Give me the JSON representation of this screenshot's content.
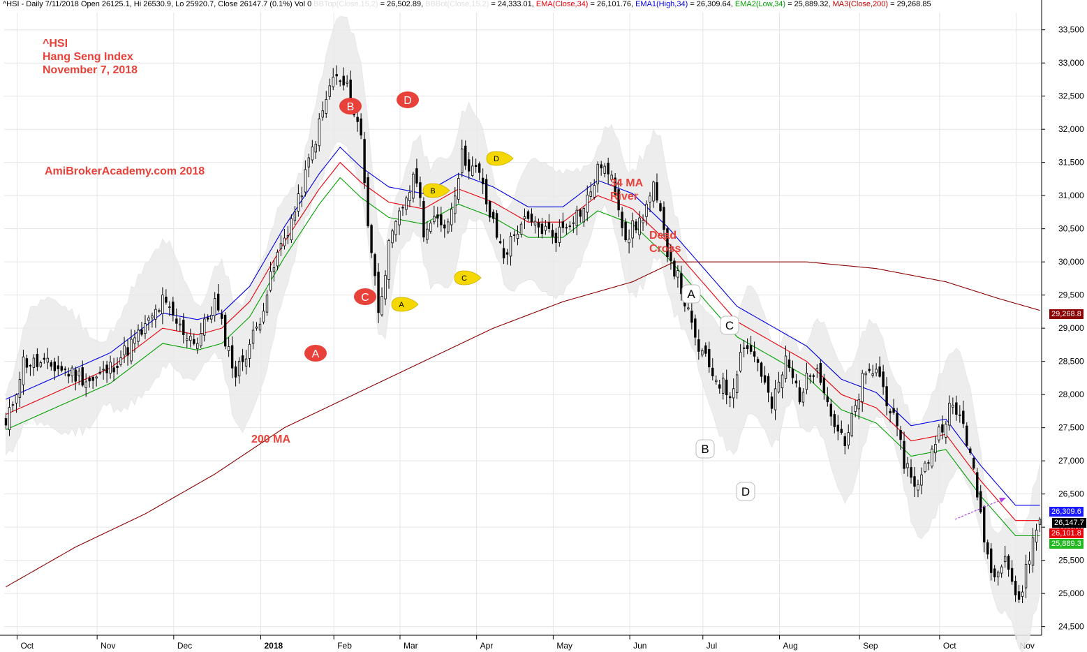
{
  "header": {
    "symbol": "^HSI - Daily 7/11/2018 Open 26125.1, Hi 26530.9, Lo 25920.7, Close 26147.7 (0.1%) Vol 0",
    "bbtop_label": "BBTop(Close,15,2)",
    "bbtop_value": " = 26,502.89, ",
    "bbbot_label": "BBBot(Close,15,2)",
    "bbbot_value": " = 24,333.01, ",
    "ema_label": "EMA(Close,34)",
    "ema_value": " = 26,101.76, ",
    "ema1_label": "EMA1(High,34)",
    "ema1_value": " = 26,309.64, ",
    "ema2_label": "EMA2(Low,34)",
    "ema2_value": " = 25,889.32, ",
    "ma3_label": "MA3(Close,200)",
    "ma3_value": " = 29,268.85"
  },
  "annotations": {
    "title_line1": "^HSI",
    "title_line2": "Hang Seng Index",
    "title_line3": "November 7, 2018",
    "site": "AmiBrokerAcademy.com  2018",
    "ma200": "200 MA",
    "river_line1": "34 MA",
    "river_line2": "River",
    "dead_line1": "Dead",
    "dead_line2": "Cross",
    "red_markers": [
      "A",
      "B",
      "C",
      "D"
    ],
    "yellow_markers": [
      "A",
      "B",
      "C",
      "D"
    ],
    "white_markers": [
      "A",
      "B",
      "C",
      "D"
    ]
  },
  "price_badges": {
    "ma200": "29,268.8",
    "ema_high": "26,309.6",
    "close": "26,147.7",
    "ema_close": "26,101.8",
    "ema_low": "25,889.3"
  },
  "colors": {
    "ema_close": "#e8000b",
    "ema_high": "#0000e0",
    "ema_low": "#00a000",
    "ma200": "#8b0000",
    "bands": "#ebebeb",
    "marker_red": "#e8413a",
    "marker_yellow": "#f5d800",
    "arrow": "#b044e8"
  },
  "chart_data": {
    "type": "candlestick",
    "title": "^HSI Hang Seng Index",
    "xlabel": "",
    "ylabel": "",
    "y_ticks": [
      24500,
      25000,
      25500,
      26000,
      26500,
      27000,
      27500,
      28000,
      28500,
      29000,
      29500,
      30000,
      30500,
      31000,
      31500,
      32000,
      32500,
      33000,
      33500
    ],
    "y_tick_labels": [
      "24,500",
      "25,000",
      "25,500",
      "26,000",
      "26,500",
      "27,000",
      "27,500",
      "28,000",
      "28,500",
      "29,000",
      "29,500",
      "30,000",
      "30,500",
      "31,000",
      "31,500",
      "32,000",
      "32,500",
      "33,000",
      "33,500"
    ],
    "ylim": [
      24370,
      33760
    ],
    "x_ticks": [
      "Oct",
      "Nov",
      "Dec",
      "2018",
      "Feb",
      "Mar",
      "Apr",
      "May",
      "Jun",
      "Jul",
      "Aug",
      "Sep",
      "Oct",
      "Nov"
    ],
    "grid": true,
    "close_anchors": [
      [
        0,
        27500
      ],
      [
        5,
        28500
      ],
      [
        15,
        28400
      ],
      [
        25,
        28200
      ],
      [
        30,
        28400
      ],
      [
        40,
        29000
      ],
      [
        45,
        29400
      ],
      [
        50,
        29000
      ],
      [
        55,
        28800
      ],
      [
        60,
        29400
      ],
      [
        66,
        28300
      ],
      [
        72,
        29000
      ],
      [
        78,
        30100
      ],
      [
        84,
        30900
      ],
      [
        88,
        31700
      ],
      [
        94,
        32800
      ],
      [
        98,
        32600
      ],
      [
        102,
        31900
      ],
      [
        104,
        30600
      ],
      [
        107,
        29300
      ],
      [
        110,
        30200
      ],
      [
        115,
        31000
      ],
      [
        118,
        31300
      ],
      [
        120,
        30500
      ],
      [
        124,
        30600
      ],
      [
        127,
        30600
      ],
      [
        131,
        31600
      ],
      [
        136,
        31300
      ],
      [
        139,
        30700
      ],
      [
        143,
        30100
      ],
      [
        148,
        30600
      ],
      [
        154,
        30500
      ],
      [
        158,
        30400
      ],
      [
        163,
        30700
      ],
      [
        166,
        30800
      ],
      [
        171,
        31500
      ],
      [
        175,
        31100
      ],
      [
        178,
        30400
      ],
      [
        182,
        30600
      ],
      [
        186,
        31100
      ],
      [
        190,
        30200
      ],
      [
        194,
        29600
      ],
      [
        198,
        28800
      ],
      [
        202,
        28400
      ],
      [
        208,
        28000
      ],
      [
        212,
        28800
      ],
      [
        216,
        28500
      ],
      [
        220,
        27800
      ],
      [
        224,
        28500
      ],
      [
        228,
        28000
      ],
      [
        233,
        28500
      ],
      [
        237,
        27700
      ],
      [
        241,
        27200
      ],
      [
        246,
        28200
      ],
      [
        250,
        28400
      ],
      [
        254,
        27800
      ],
      [
        258,
        27000
      ],
      [
        262,
        26600
      ],
      [
        266,
        27200
      ],
      [
        271,
        27800
      ],
      [
        275,
        27600
      ],
      [
        279,
        26500
      ],
      [
        283,
        25300
      ],
      [
        287,
        25600
      ],
      [
        291,
        24800
      ],
      [
        293,
        25400
      ],
      [
        297,
        26150
      ]
    ],
    "ema_close_anchors": [
      [
        0,
        27700
      ],
      [
        30,
        28400
      ],
      [
        45,
        29000
      ],
      [
        55,
        28900
      ],
      [
        62,
        29000
      ],
      [
        70,
        29400
      ],
      [
        80,
        30300
      ],
      [
        90,
        31100
      ],
      [
        96,
        31500
      ],
      [
        102,
        31200
      ],
      [
        110,
        30900
      ],
      [
        120,
        30800
      ],
      [
        130,
        31100
      ],
      [
        140,
        30900
      ],
      [
        150,
        30600
      ],
      [
        160,
        30600
      ],
      [
        170,
        31000
      ],
      [
        180,
        30800
      ],
      [
        190,
        30300
      ],
      [
        200,
        29700
      ],
      [
        210,
        29100
      ],
      [
        220,
        28800
      ],
      [
        230,
        28500
      ],
      [
        240,
        28000
      ],
      [
        250,
        27800
      ],
      [
        260,
        27300
      ],
      [
        270,
        27400
      ],
      [
        280,
        26700
      ],
      [
        290,
        26100
      ],
      [
        297,
        26100
      ]
    ],
    "ma200_anchors": [
      [
        0,
        25100
      ],
      [
        20,
        25700
      ],
      [
        40,
        26200
      ],
      [
        60,
        26800
      ],
      [
        80,
        27500
      ],
      [
        100,
        28000
      ],
      [
        120,
        28500
      ],
      [
        140,
        29000
      ],
      [
        160,
        29400
      ],
      [
        180,
        29700
      ],
      [
        192,
        30000
      ],
      [
        210,
        30000
      ],
      [
        230,
        30000
      ],
      [
        250,
        29900
      ],
      [
        270,
        29700
      ],
      [
        285,
        29450
      ],
      [
        297,
        29268.85
      ]
    ],
    "ema_offsets": {
      "high": 230,
      "low": -230
    },
    "band_half_width": 750
  }
}
